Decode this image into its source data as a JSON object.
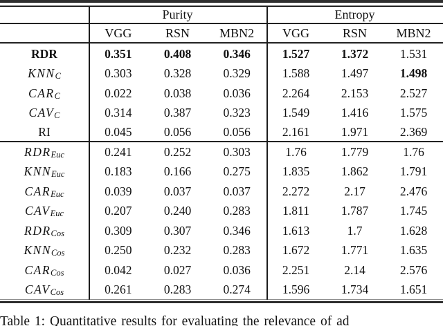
{
  "caption": "Table 1: Quantitative results for evaluating the relevance of ad",
  "colors": {
    "background": "#ffffff",
    "text": "#111111",
    "rule": "#222222"
  },
  "table": {
    "col_groups": [
      {
        "label": "Purity",
        "cols": [
          "VGG",
          "RSN",
          "MBN2"
        ]
      },
      {
        "label": "Entropy",
        "cols": [
          "VGG",
          "RSN",
          "MBN2"
        ]
      }
    ],
    "section_break_after_row": 5,
    "rows": [
      {
        "label": "RDR",
        "sub": "",
        "style": "bold",
        "values": [
          "0.351",
          "0.408",
          "0.346",
          "1.527",
          "1.372",
          "1.531"
        ],
        "bold": [
          true,
          true,
          true,
          true,
          true,
          false
        ]
      },
      {
        "label": "KNN",
        "sub": "C",
        "style": "math",
        "values": [
          "0.303",
          "0.328",
          "0.329",
          "1.588",
          "1.497",
          "1.498"
        ],
        "bold": [
          false,
          false,
          false,
          false,
          false,
          true
        ]
      },
      {
        "label": "CAR",
        "sub": "C",
        "style": "math",
        "values": [
          "0.022",
          "0.038",
          "0.036",
          "2.264",
          "2.153",
          "2.527"
        ],
        "bold": [
          false,
          false,
          false,
          false,
          false,
          false
        ]
      },
      {
        "label": "CAV",
        "sub": "C",
        "style": "math",
        "values": [
          "0.314",
          "0.387",
          "0.323",
          "1.549",
          "1.416",
          "1.575"
        ],
        "bold": [
          false,
          false,
          false,
          false,
          false,
          false
        ]
      },
      {
        "label": "RI",
        "sub": "",
        "style": "roman",
        "values": [
          "0.045",
          "0.056",
          "0.056",
          "2.161",
          "1.971",
          "2.369"
        ],
        "bold": [
          false,
          false,
          false,
          false,
          false,
          false
        ]
      },
      {
        "label": "RDR",
        "sub": "Euc",
        "style": "math",
        "values": [
          "0.241",
          "0.252",
          "0.303",
          "1.76",
          "1.779",
          "1.76"
        ],
        "bold": [
          false,
          false,
          false,
          false,
          false,
          false
        ]
      },
      {
        "label": "KNN",
        "sub": "Euc",
        "style": "math",
        "values": [
          "0.183",
          "0.166",
          "0.275",
          "1.835",
          "1.862",
          "1.791"
        ],
        "bold": [
          false,
          false,
          false,
          false,
          false,
          false
        ]
      },
      {
        "label": "CAR",
        "sub": "Euc",
        "style": "math",
        "values": [
          "0.039",
          "0.037",
          "0.037",
          "2.272",
          "2.17",
          "2.476"
        ],
        "bold": [
          false,
          false,
          false,
          false,
          false,
          false
        ]
      },
      {
        "label": "CAV",
        "sub": "Euc",
        "style": "math",
        "values": [
          "0.207",
          "0.240",
          "0.283",
          "1.811",
          "1.787",
          "1.745"
        ],
        "bold": [
          false,
          false,
          false,
          false,
          false,
          false
        ]
      },
      {
        "label": "RDR",
        "sub": "Cos",
        "style": "math",
        "values": [
          "0.309",
          "0.307",
          "0.346",
          "1.613",
          "1.7",
          "1.628"
        ],
        "bold": [
          false,
          false,
          false,
          false,
          false,
          false
        ]
      },
      {
        "label": "KNN",
        "sub": "Cos",
        "style": "math",
        "values": [
          "0.250",
          "0.232",
          "0.283",
          "1.672",
          "1.771",
          "1.635"
        ],
        "bold": [
          false,
          false,
          false,
          false,
          false,
          false
        ]
      },
      {
        "label": "CAR",
        "sub": "Cos",
        "style": "math",
        "values": [
          "0.042",
          "0.027",
          "0.036",
          "2.251",
          "2.14",
          "2.576"
        ],
        "bold": [
          false,
          false,
          false,
          false,
          false,
          false
        ]
      },
      {
        "label": "CAV",
        "sub": "Cos",
        "style": "math",
        "values": [
          "0.261",
          "0.283",
          "0.274",
          "1.596",
          "1.734",
          "1.651"
        ],
        "bold": [
          false,
          false,
          false,
          false,
          false,
          false
        ]
      }
    ]
  }
}
